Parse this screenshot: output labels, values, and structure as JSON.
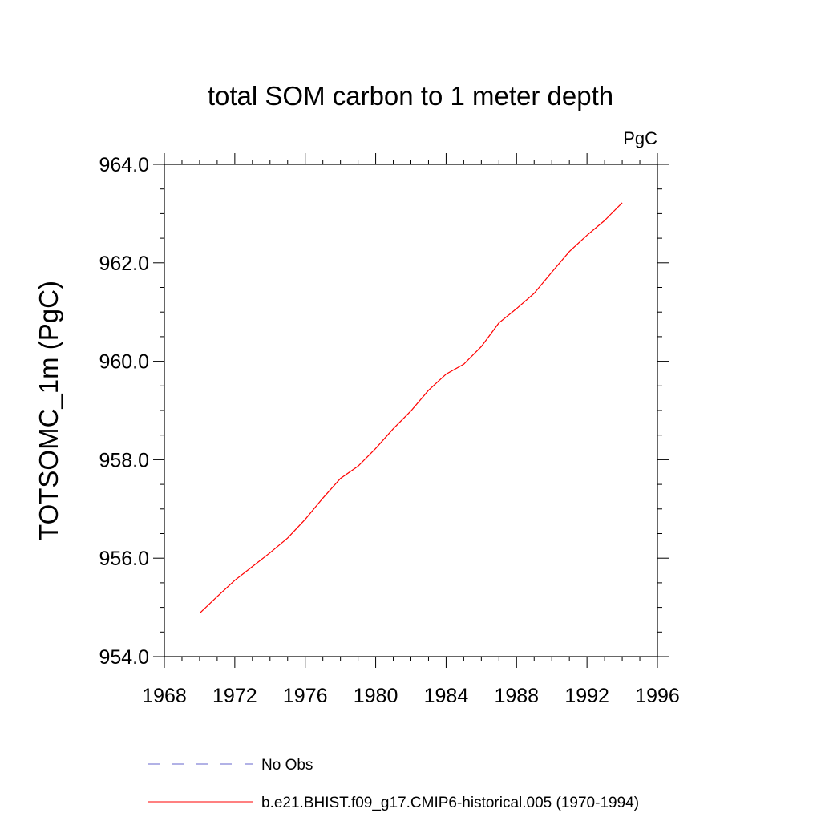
{
  "chart_data": {
    "type": "line",
    "title": "total SOM carbon to 1 meter depth",
    "units_label": "PgC",
    "xlabel": "",
    "ylabel": "TOTSOMC_1m  (PgC)",
    "xlim": [
      1968,
      1996
    ],
    "ylim": [
      954.0,
      964.0
    ],
    "x_ticks": [
      1968,
      1972,
      1976,
      1980,
      1984,
      1988,
      1992,
      1996
    ],
    "x_tick_labels": [
      "1968",
      "1972",
      "1976",
      "1980",
      "1984",
      "1988",
      "1992",
      "1996"
    ],
    "y_ticks": [
      954.0,
      956.0,
      958.0,
      960.0,
      962.0,
      964.0
    ],
    "y_tick_labels": [
      "954.0",
      "956.0",
      "958.0",
      "960.0",
      "962.0",
      "964.0"
    ],
    "grid": false,
    "series": [
      {
        "name": "No Obs",
        "color": "#6666cc",
        "dash": "dashed",
        "x": [],
        "values": []
      },
      {
        "name": "b.e21.BHIST.f09_g17.CMIP6-historical.005 (1970-1994)",
        "color": "#ff0000",
        "dash": "solid",
        "x": [
          1970,
          1971,
          1972,
          1973,
          1974,
          1975,
          1976,
          1977,
          1978,
          1979,
          1980,
          1981,
          1982,
          1983,
          1984,
          1985,
          1986,
          1987,
          1988,
          1989,
          1990,
          1991,
          1992,
          1993,
          1994
        ],
        "values": [
          954.88,
          955.22,
          955.55,
          955.83,
          956.11,
          956.41,
          956.79,
          957.22,
          957.62,
          957.87,
          958.23,
          958.63,
          958.99,
          959.41,
          959.74,
          959.94,
          960.3,
          960.78,
          961.07,
          961.38,
          961.81,
          962.23,
          962.56,
          962.86,
          963.22
        ]
      }
    ]
  }
}
